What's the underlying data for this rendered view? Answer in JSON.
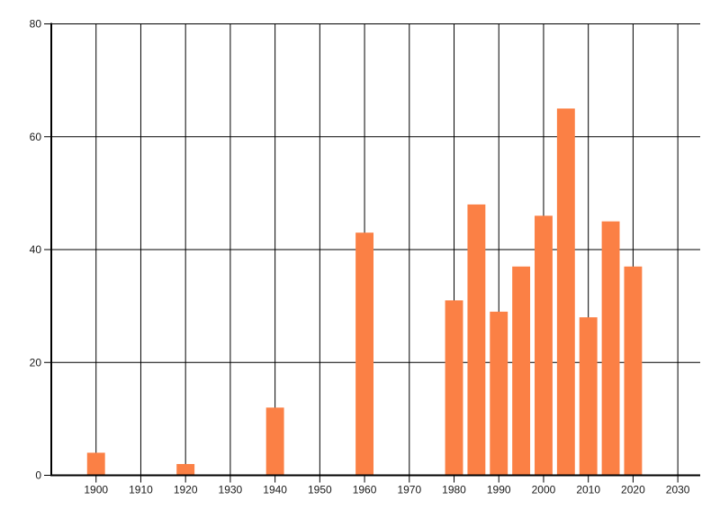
{
  "colors": {
    "background": "#ffffff",
    "bar": "#FB8045",
    "grid": "#000000",
    "axis": "#000000",
    "tick_label": "#1a1a1a"
  },
  "chart_data": {
    "type": "bar",
    "title": "",
    "xlabel": "",
    "ylabel": "",
    "x": [
      1900,
      1920,
      1940,
      1960,
      1980,
      1985,
      1990,
      1995,
      2000,
      2005,
      2010,
      2015,
      2020
    ],
    "values": [
      4,
      2,
      12,
      43,
      31,
      48,
      29,
      37,
      46,
      65,
      28,
      45,
      37
    ],
    "xlim": [
      1890,
      2035
    ],
    "ylim": [
      0,
      80
    ],
    "x_ticks": [
      1900,
      1910,
      1920,
      1930,
      1940,
      1950,
      1960,
      1970,
      1980,
      1990,
      2000,
      2010,
      2020,
      2030
    ],
    "y_ticks": [
      0,
      20,
      40,
      60,
      80
    ],
    "grid": true,
    "legend": false,
    "bar_width_years": 4
  }
}
